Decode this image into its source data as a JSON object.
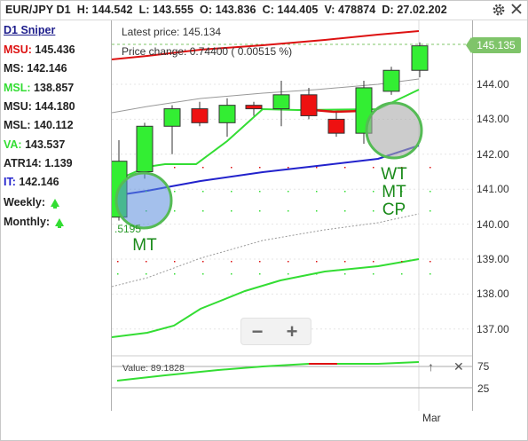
{
  "header": {
    "symbol": "EUR/JPY D1",
    "high": "H: 144.542",
    "low": "L: 143.555",
    "open": "O: 143.836",
    "close": "C: 144.405",
    "volume": "V: 478874",
    "date": "D: 27.02.202",
    "settings_icon": "gear-icon",
    "close_icon": "close-icon"
  },
  "sidebar": {
    "title": "D1 Sniper",
    "rows": [
      {
        "label": "MSU:",
        "value": " 145.436",
        "color": "#dd1111"
      },
      {
        "label": "MS:",
        "value": " 142.146",
        "color": "#222222"
      },
      {
        "label": "MSL:",
        "value": " 138.857",
        "color": "#33dd33"
      },
      {
        "label": "MSU:",
        "value": " 144.180",
        "color": "#222222"
      },
      {
        "label": "MSL:",
        "value": " 140.112",
        "color": "#222222"
      },
      {
        "label": "VA:",
        "value": " 143.537",
        "color": "#33dd33"
      },
      {
        "label": "ATR14:",
        "value": " 1.139",
        "color": "#222222"
      },
      {
        "label": "IT:",
        "value": " 142.146",
        "color": "#2222cc"
      }
    ],
    "weekly": "Weekly:",
    "monthly": "Monthly:",
    "weekly_icon": "arrow-up-icon",
    "monthly_icon": "arrow-up-icon"
  },
  "chart": {
    "latest_price": "Latest price: 145.134",
    "price_change": "Price change: 0.74400 ( 0.00515 %)",
    "price_tag": "145.135",
    "partial_label": ".5195",
    "annotation_left": "MT",
    "annotation_right": [
      "WT",
      "MT",
      "CP"
    ],
    "y_labels": [
      "144.00",
      "143.00",
      "142.00",
      "141.00",
      "140.00",
      "139.00",
      "138.00",
      "137.00"
    ],
    "x_label": "Mar",
    "zoom_minus": "−",
    "zoom_plus": "+"
  },
  "subchart": {
    "value_label": "Value: 89.1828",
    "y_labels": [
      "75",
      "25"
    ],
    "up_icon": "arrow-up-icon",
    "close_icon": "close-icon"
  },
  "chart_data": {
    "type": "candlestick",
    "ylim": [
      136.5,
      145.5
    ],
    "yticks": [
      137,
      138,
      139,
      140,
      141,
      142,
      143,
      144
    ],
    "candles": [
      {
        "o": 140.2,
        "h": 142.4,
        "l": 140.1,
        "c": 141.8,
        "color": "green"
      },
      {
        "o": 141.5,
        "h": 142.9,
        "l": 141.3,
        "c": 142.8,
        "color": "green"
      },
      {
        "o": 142.8,
        "h": 143.4,
        "l": 142.0,
        "c": 143.3,
        "color": "green"
      },
      {
        "o": 143.3,
        "h": 143.5,
        "l": 142.8,
        "c": 142.9,
        "color": "red"
      },
      {
        "o": 142.9,
        "h": 143.6,
        "l": 142.5,
        "c": 143.4,
        "color": "green"
      },
      {
        "o": 143.4,
        "h": 143.5,
        "l": 143.1,
        "c": 143.3,
        "color": "red"
      },
      {
        "o": 143.3,
        "h": 144.1,
        "l": 142.8,
        "c": 143.7,
        "color": "green"
      },
      {
        "o": 143.7,
        "h": 143.9,
        "l": 143.0,
        "c": 143.1,
        "color": "red"
      },
      {
        "o": 143.0,
        "h": 143.2,
        "l": 142.5,
        "c": 142.6,
        "color": "red"
      },
      {
        "o": 142.6,
        "h": 144.1,
        "l": 142.3,
        "c": 143.9,
        "color": "green"
      },
      {
        "o": 143.8,
        "h": 144.5,
        "l": 143.7,
        "c": 144.4,
        "color": "green"
      },
      {
        "o": 144.4,
        "h": 145.2,
        "l": 144.2,
        "c": 145.1,
        "color": "green"
      }
    ]
  }
}
